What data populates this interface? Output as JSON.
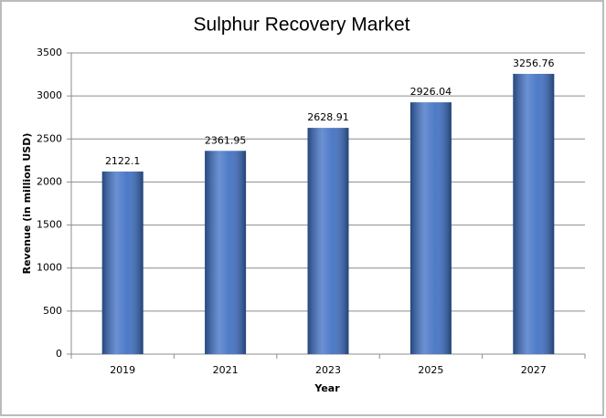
{
  "chart_data": {
    "type": "bar",
    "title": "Sulphur Recovery Market",
    "x_label": "Year",
    "y_label": "Revenue (in million USD)",
    "categories": [
      "2019",
      "2021",
      "2023",
      "2025",
      "2027"
    ],
    "values": [
      2122.1,
      2361.95,
      2628.91,
      2926.04,
      3256.76
    ],
    "color": "#3a6cc2",
    "ylim": [
      0,
      3500
    ],
    "yticks": [
      0,
      500,
      1000,
      1500,
      2000,
      2500,
      3000,
      3500
    ],
    "grid": true
  }
}
